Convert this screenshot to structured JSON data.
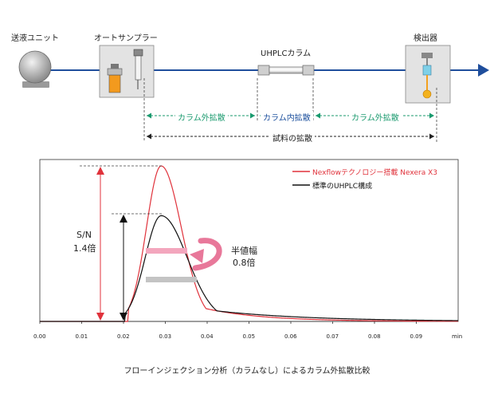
{
  "diagram": {
    "components": {
      "pump": "送液ユニット",
      "autosampler": "オートサンプラー",
      "column": "UHPLCカラム",
      "detector": "検出器"
    },
    "dispersion": {
      "extra_column_left": "カラム外拡散",
      "intra_column": "カラム内拡散",
      "extra_column_right": "カラム外拡散",
      "total": "試料の拡散"
    }
  },
  "chart_data": {
    "type": "line",
    "xlabel": "min",
    "xlim": [
      0.0,
      0.1
    ],
    "ylim": [
      0,
      1.05
    ],
    "x_ticks": [
      "0.00",
      "0.01",
      "0.02",
      "0.03",
      "0.04",
      "0.05",
      "0.06",
      "0.07",
      "0.08",
      "0.09"
    ],
    "series": [
      {
        "name": "Nexflowテクノロジー搭載 Nexera X3",
        "color": "#e0323b",
        "peak": {
          "t0": 0.021,
          "apex_x": 0.029,
          "apex_y": 1.0,
          "sigma_rise": 0.0035,
          "sigma_fall": 0.0048,
          "tail": 0.055
        }
      },
      {
        "name": "標準のUHPLC構成",
        "color": "#111111",
        "peak": {
          "t0": 0.0205,
          "apex_x": 0.029,
          "apex_y": 0.68,
          "sigma_rise": 0.0038,
          "sigma_fall": 0.0062,
          "tail": 0.09
        }
      }
    ],
    "annotations": {
      "sn_label": "S/N",
      "sn_value": "1.4倍",
      "width_label": "半値幅",
      "width_value": "0.8倍"
    },
    "caption": "フローインジェクション分析（カラムなし）によるカラム外拡散比較"
  },
  "colors": {
    "flow": "#1f4e9c",
    "accent_green": "#1a9a6e",
    "pink": "#e8789a",
    "gray_bar": "#bdbdbd"
  }
}
